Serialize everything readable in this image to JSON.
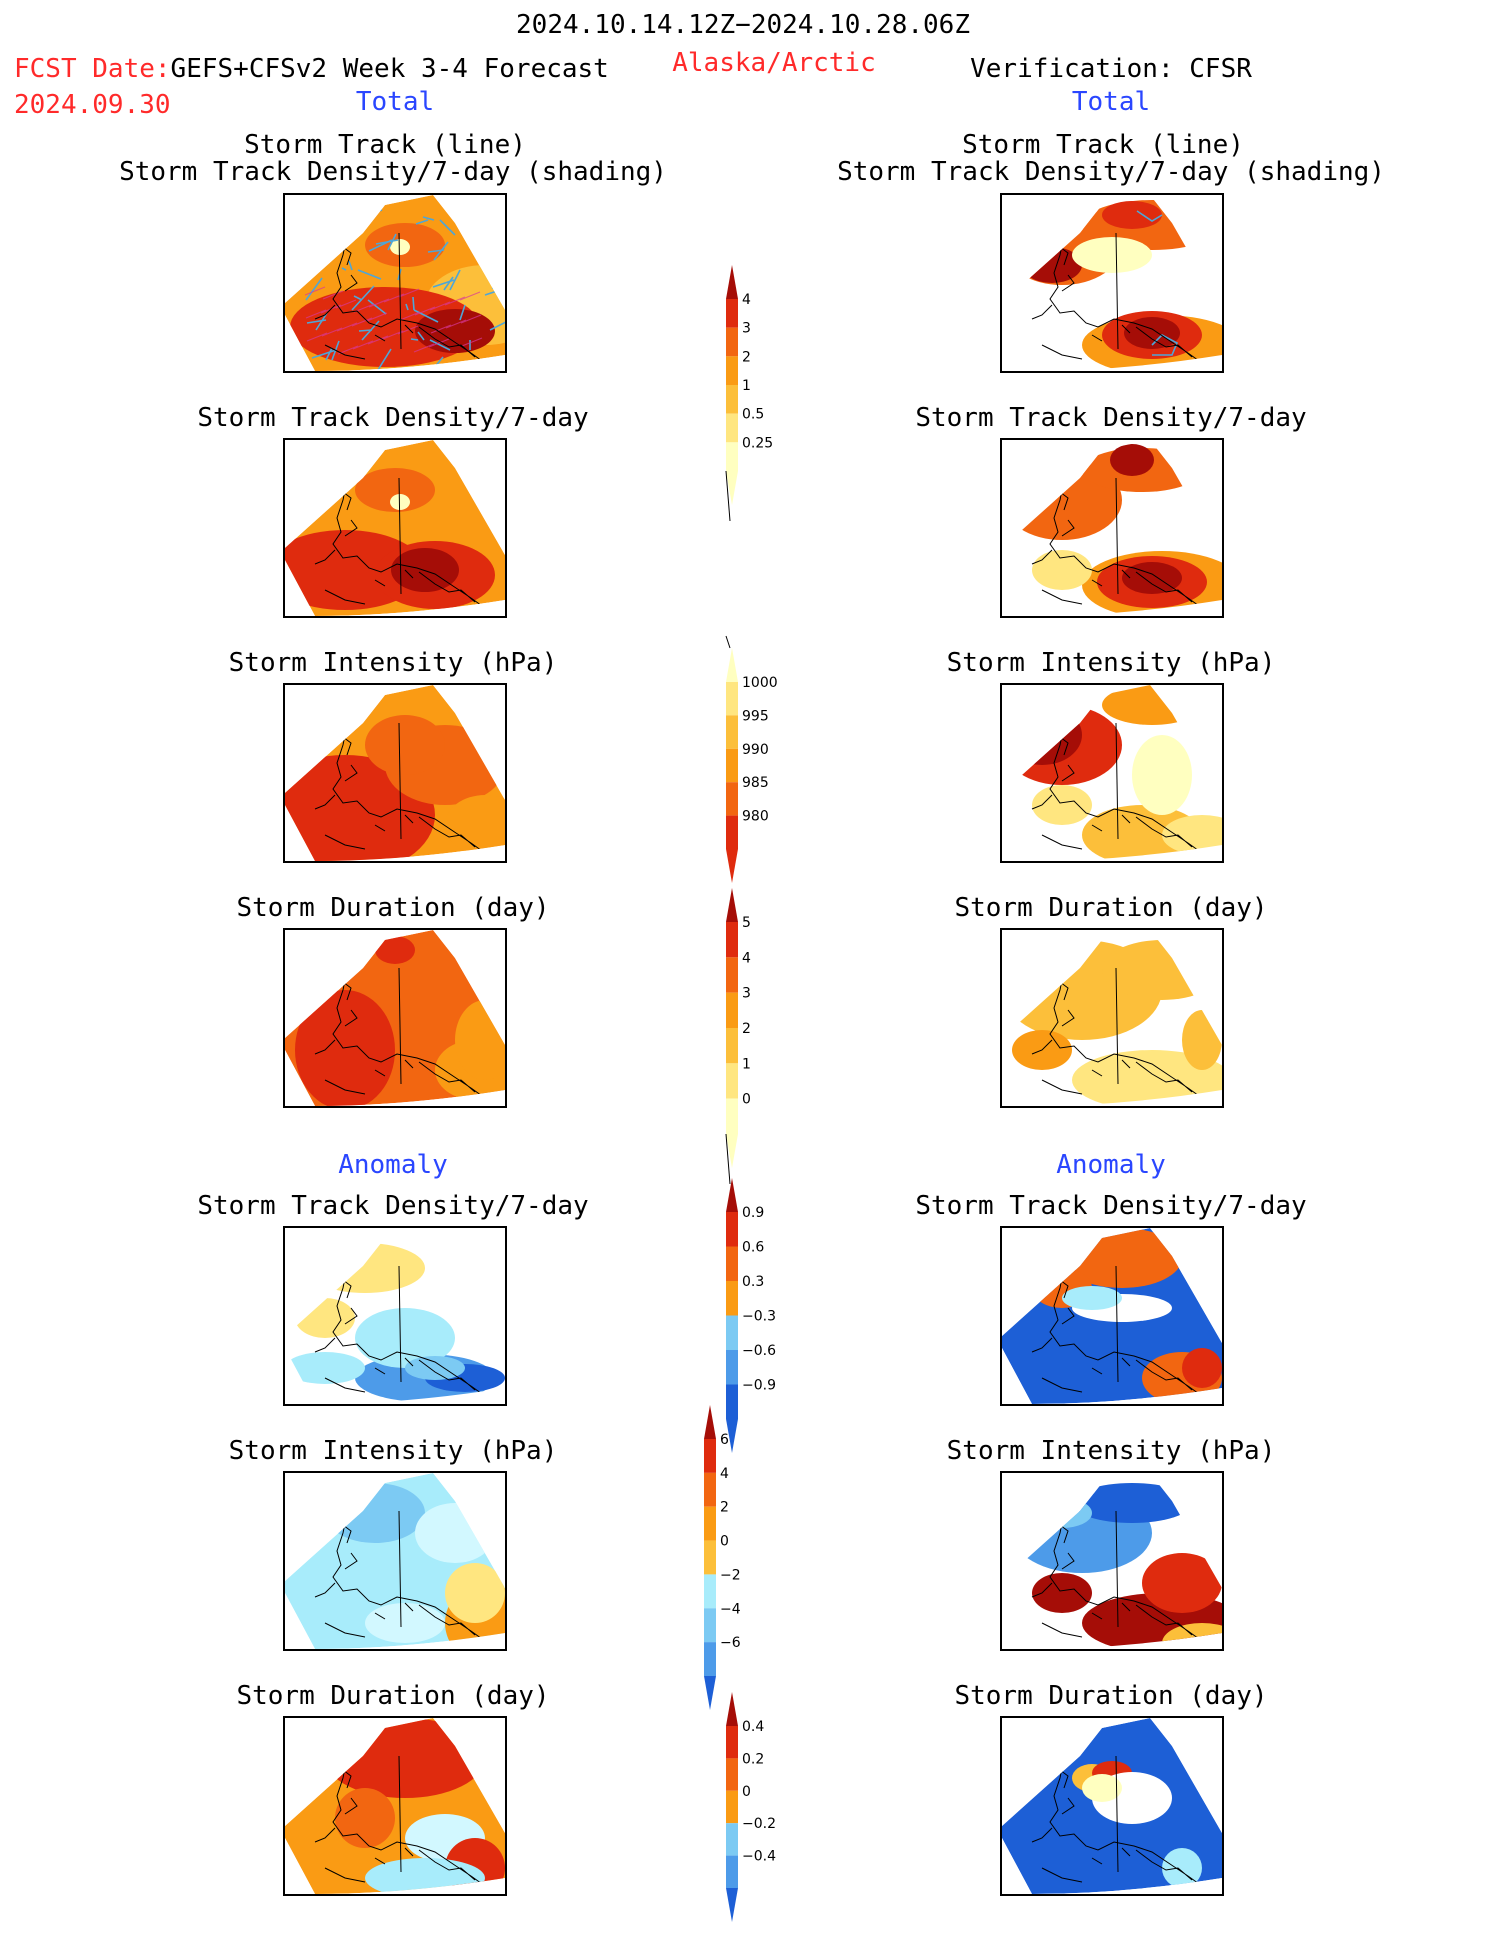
{
  "header": {
    "period": "2024.10.14.12Z−2024.10.28.06Z",
    "fcst_prefix": "FCST Date:",
    "model": "GEFS+CFSv2 Week 3-4 Forecast",
    "fcst_date": "2024.09.30",
    "region": "Alaska/Arctic",
    "verification": "Verification: CFSR"
  },
  "columns": {
    "left_section_total": "Total",
    "right_section_total": "Total",
    "left_section_anomaly": "Anomaly",
    "right_section_anomaly": "Anomaly"
  },
  "panels": {
    "track_title_1": "Storm Track (line)",
    "track_title_2": "Storm Track Density/7-day (shading)",
    "density": "Storm Track Density/7-day",
    "intensity": "Storm Intensity (hPa)",
    "duration": "Storm Duration (day)"
  },
  "colorbars": {
    "density_total": [
      "4",
      "3",
      "2",
      "1",
      "0.5",
      "0.25"
    ],
    "intensity_total": [
      "1000",
      "995",
      "990",
      "985",
      "980"
    ],
    "duration_total": [
      "5",
      "4",
      "3",
      "2",
      "1",
      "0"
    ],
    "density_anom": [
      "0.9",
      "0.6",
      "0.3",
      "−0.3",
      "−0.6",
      "−0.9"
    ],
    "intensity_anom": [
      "6",
      "4",
      "2",
      "0",
      "−2",
      "−4",
      "−6"
    ],
    "duration_anom": [
      "0.4",
      "0.2",
      "0",
      "−0.2",
      "−0.4"
    ]
  },
  "colors": {
    "warm": [
      "#ffffc0",
      "#ffe680",
      "#fcbf3a",
      "#fa9b14",
      "#f26611",
      "#df2b0e",
      "#a50d07"
    ],
    "cool": [
      "#d2f8ff",
      "#a8ecfb",
      "#7ccaf3",
      "#4d9be9",
      "#1d5fd6"
    ],
    "track_line": "#4ea6d8",
    "header_red": "#ff2a2a",
    "header_blue": "#2a46ff"
  }
}
